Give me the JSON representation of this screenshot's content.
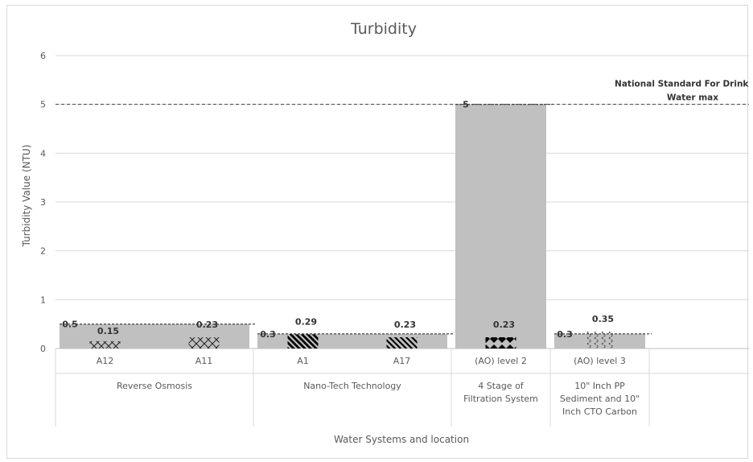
{
  "chart_data": {
    "type": "bar",
    "title": "Turbidity",
    "ylabel": "Turbidity Value (NTU)",
    "xlabel": "Water Systems and location",
    "ylim": [
      0,
      6
    ],
    "yticks": [
      "0",
      "1",
      "2",
      "3",
      "4",
      "5",
      "6"
    ],
    "grid": true,
    "categories": [
      "A12",
      "A11",
      "A1",
      "A17",
      "(AO) level 2",
      "(AO) level 3"
    ],
    "groups": [
      {
        "label": "Reverse Osmosis",
        "categories": [
          "A12",
          "A11"
        ]
      },
      {
        "label": "Nano-Tech Technology",
        "categories": [
          "A1",
          "A17"
        ]
      },
      {
        "label": "4 Stage of Filtration System",
        "categories": [
          "(AO) level 2"
        ]
      },
      {
        "label": "10\" Inch PP Sediment and 10\" Inch CTO Carbon",
        "categories": [
          "(AO) level 3"
        ]
      }
    ],
    "series": [
      {
        "values": [
          0.15,
          0.23,
          0.29,
          0.23,
          0.23,
          0.35
        ],
        "labels": [
          "0.15",
          "0.23",
          "0.29",
          "0.23",
          "0.23",
          "0.35"
        ],
        "patterns": [
          "cross",
          "diamond-outline",
          "diagonal-thick",
          "diagonal",
          "diamond-solid",
          "chevron"
        ],
        "color": "#000000"
      }
    ],
    "group_standards": [
      {
        "group": "Reverse Osmosis",
        "value": 0.5,
        "label": "0.5"
      },
      {
        "group": "Nano-Tech Technology",
        "value": 0.3,
        "label": "0.3"
      },
      {
        "group": "4 Stage of Filtration System",
        "value": 5,
        "label": "5"
      },
      {
        "group": "10\" Inch PP Sediment and 10\" Inch CTO Carbon",
        "value": 0.3,
        "label": "0.3"
      }
    ],
    "standard_fill_color": "#c0c0c0",
    "national_standard": {
      "value": 5,
      "label_lines": [
        "National Standard For Drinking",
        "Water max"
      ]
    }
  }
}
